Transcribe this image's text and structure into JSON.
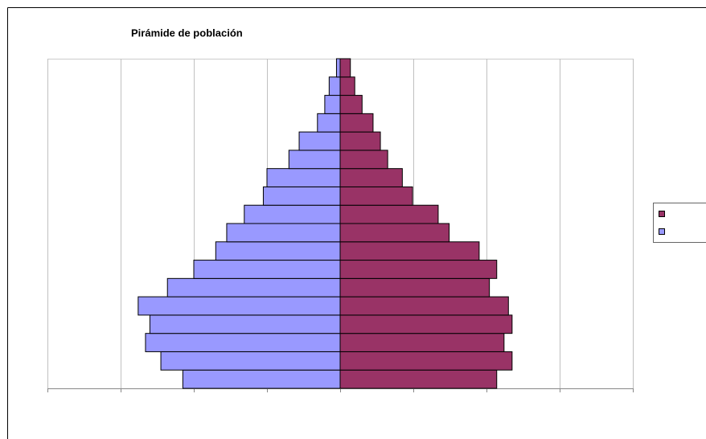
{
  "chart_data": {
    "type": "pyramid",
    "title": "Pirámide de población",
    "categories": [
      null,
      null,
      null,
      null,
      null,
      null,
      null,
      null,
      null,
      null,
      null,
      null,
      null,
      null,
      null,
      null,
      null,
      null
    ],
    "series": [
      {
        "color": "#993366",
        "values": [
          2.14,
          2.35,
          2.24,
          2.35,
          2.3,
          2.04,
          2.14,
          1.9,
          1.49,
          1.34,
          0.99,
          0.85,
          0.65,
          0.55,
          0.45,
          0.3,
          0.2,
          0.14
        ]
      },
      {
        "color": "#9999ff",
        "values": [
          -2.15,
          -2.45,
          -2.66,
          -2.6,
          -2.76,
          -2.36,
          -2.0,
          -1.7,
          -1.55,
          -1.31,
          -1.05,
          -1.0,
          -0.7,
          -0.56,
          -0.31,
          -0.21,
          -0.15,
          -0.05
        ]
      }
    ],
    "xlim": [
      -4,
      4
    ],
    "xticks": [
      -4,
      -3,
      -2,
      -1,
      0,
      1,
      2,
      3,
      4
    ],
    "grid": true
  }
}
